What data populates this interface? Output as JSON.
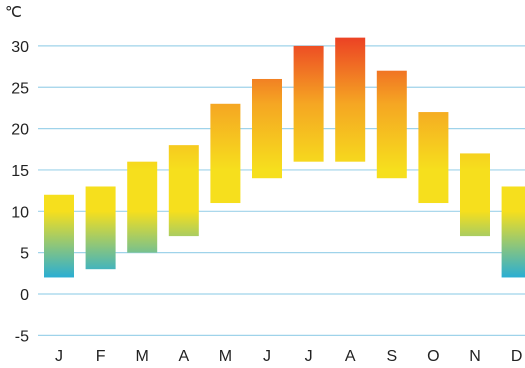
{
  "chart_data": {
    "type": "bar",
    "subtype": "floating-range",
    "unit_label": "℃",
    "categories": [
      "J",
      "F",
      "M",
      "A",
      "M",
      "J",
      "J",
      "A",
      "S",
      "O",
      "N",
      "D"
    ],
    "series": [
      {
        "low": [
          2,
          3,
          5,
          7,
          11,
          14,
          16,
          16,
          14,
          11,
          7,
          2
        ],
        "high": [
          12,
          13,
          16,
          18,
          23,
          26,
          30,
          31,
          27,
          22,
          17,
          13
        ]
      }
    ],
    "y_ticks": [
      30,
      25,
      20,
      15,
      10,
      5,
      0,
      -5
    ],
    "ylim": [
      -5,
      31
    ],
    "grid": true,
    "colors": {
      "grid": "#9fd3ea",
      "cold": "#2aaed3",
      "mild": "#f6df1d",
      "warm": "#f5a623",
      "hot": "#ec4224"
    }
  }
}
